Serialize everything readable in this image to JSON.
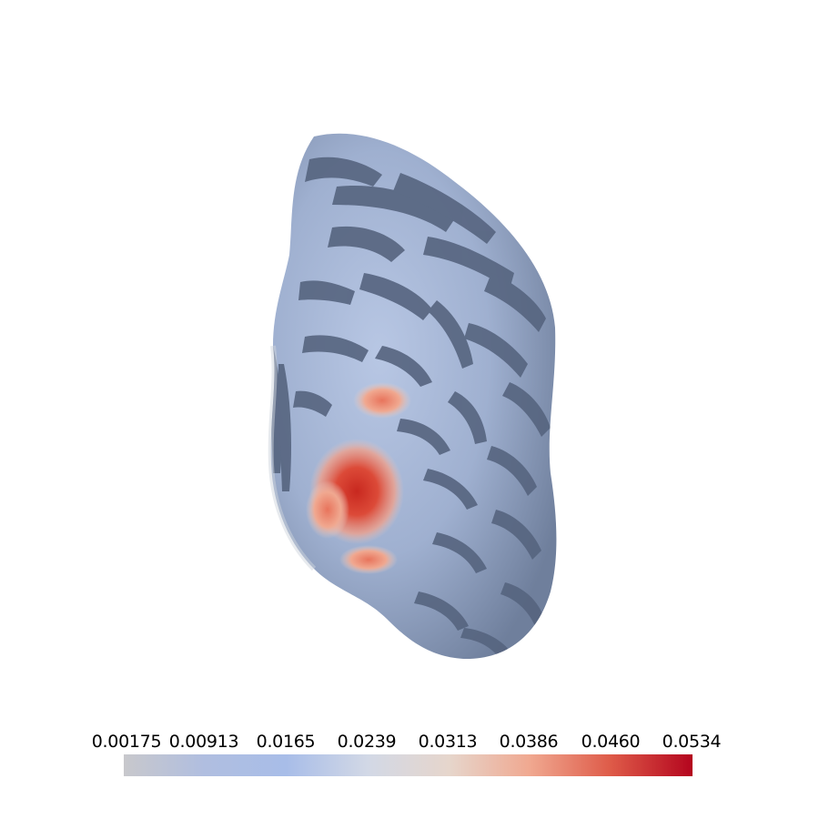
{
  "colorbar": {
    "ticks": [
      "0.00175",
      "0.00913",
      "0.0165",
      "0.0239",
      "0.0313",
      "0.0386",
      "0.0460",
      "0.0534"
    ],
    "min": 0.00175,
    "max": 0.0534,
    "colors": [
      "#c8c8cc",
      "#b0bee0",
      "#a8bde8",
      "#d2d8e6",
      "#e6d6cc",
      "#f0a890",
      "#de5a48",
      "#b4051e"
    ]
  },
  "surface": {
    "base_light": "#a6b7d6",
    "base_dark": "#4f5e7a",
    "hotspot_color": "#d63a2c"
  }
}
